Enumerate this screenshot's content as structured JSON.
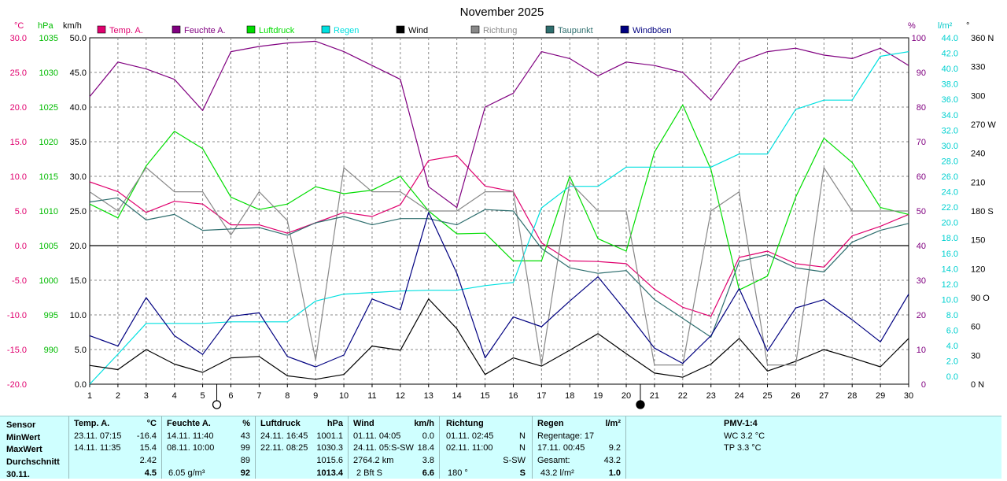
{
  "chart_data": {
    "type": "line",
    "title": "November 2025",
    "x": [
      1,
      2,
      3,
      4,
      5,
      6,
      7,
      8,
      9,
      10,
      11,
      12,
      13,
      14,
      15,
      16,
      17,
      18,
      19,
      20,
      21,
      22,
      23,
      24,
      25,
      26,
      27,
      28,
      29,
      30
    ],
    "xlim": [
      1,
      30
    ],
    "axes": {
      "temp_unit": "°C",
      "temp_ticks": [
        "30.0",
        "25.0",
        "20.0",
        "15.0",
        "10.0",
        "5.0",
        "0.0",
        "-5.0",
        "-10.0",
        "-15.0",
        "-20.0"
      ],
      "temp_range": [
        -20,
        30
      ],
      "press_unit": "hPa",
      "press_ticks": [
        "1035",
        "1030",
        "1025",
        "1020",
        "1015",
        "1010",
        "1005",
        "1000",
        "995",
        "990"
      ],
      "press_range": [
        990,
        1040
      ],
      "wind_unit": "km/h",
      "wind_ticks": [
        "50.0",
        "45.0",
        "40.0",
        "35.0",
        "30.0",
        "25.0",
        "20.0",
        "15.0",
        "10.0",
        "5.0",
        "0.0"
      ],
      "wind_range": [
        0,
        50
      ],
      "hum_unit": "%",
      "hum_ticks": [
        "100",
        "90",
        "80",
        "70",
        "60",
        "50",
        "40",
        "30",
        "20",
        "10",
        "0"
      ],
      "hum_range": [
        0,
        100
      ],
      "rain_unit": "l/m²",
      "rain_ticks": [
        "44.0",
        "42.0",
        "40.0",
        "38.0",
        "36.0",
        "34.0",
        "32.0",
        "30.0",
        "28.0",
        "26.0",
        "24.0",
        "22.0",
        "20.0",
        "18.0",
        "16.0",
        "14.0",
        "12.0",
        "10.0",
        "8.0",
        "6.0",
        "4.0",
        "2.0",
        "0.0"
      ],
      "rain_range": [
        0,
        45
      ],
      "dir_unit": "°",
      "dir_ticks": [
        "360 N",
        "330",
        "300",
        "270 W",
        "240",
        "210",
        "180 S",
        "150",
        "120",
        "90 O",
        "60",
        "30",
        "0 N"
      ],
      "dir_range": [
        0,
        360
      ]
    },
    "moon_phases": [
      {
        "day": 5.5,
        "phase": "full"
      },
      {
        "day": 20.5,
        "phase": "new"
      }
    ],
    "legend_position": "top",
    "series": [
      {
        "name": "Temp. A.",
        "color": "#e0006e",
        "axis": "temp",
        "values": [
          9.2,
          7.8,
          4.8,
          6.4,
          6.0,
          3.0,
          3.0,
          1.8,
          3.3,
          4.8,
          4.2,
          5.9,
          12.3,
          13.0,
          8.6,
          7.8,
          0.4,
          -2.2,
          -2.3,
          -2.6,
          -6.3,
          -8.9,
          -10.2,
          -1.7,
          -0.8,
          -2.6,
          -3.1,
          1.4,
          2.8,
          4.5
        ]
      },
      {
        "name": "Feuchte A.",
        "color": "#800080",
        "axis": "hum",
        "values": [
          83,
          93,
          91,
          88,
          79,
          96,
          97.5,
          98.5,
          99,
          96,
          92,
          88,
          57,
          51,
          80,
          84,
          96,
          94,
          89,
          93,
          92,
          90,
          82,
          93,
          96,
          97,
          95,
          94,
          97,
          92
        ]
      },
      {
        "name": "Luftdruck",
        "color": "#00dd00",
        "axis": "press",
        "values": [
          1016,
          1014,
          1021.5,
          1026.5,
          1024,
          1017,
          1015.2,
          1016,
          1018.5,
          1017.5,
          1018,
          1020,
          1015,
          1011.7,
          1011.8,
          1007.8,
          1007.8,
          1020,
          1011,
          1009.2,
          1023.5,
          1030.3,
          1021,
          1003.6,
          1005.6,
          1017,
          1025.5,
          1022,
          1015.5,
          1014.5
        ]
      },
      {
        "name": "Regen",
        "color": "#00e0e0",
        "axis": "rain",
        "values": [
          0,
          3.9,
          7.9,
          7.9,
          7.9,
          8.1,
          8.1,
          8.1,
          10.8,
          11.7,
          11.9,
          12.1,
          12.2,
          12.2,
          12.8,
          13.2,
          22.9,
          25.7,
          25.7,
          28.2,
          28.2,
          28.2,
          28.2,
          29.9,
          29.9,
          35.7,
          36.9,
          36.9,
          42.6,
          43.2
        ]
      },
      {
        "name": "Wind",
        "color": "#000000",
        "axis": "wind",
        "values": [
          2.7,
          2.1,
          5.0,
          2.9,
          1.7,
          3.8,
          4.0,
          1.2,
          0.7,
          1.4,
          5.5,
          4.9,
          12.3,
          8.0,
          1.4,
          3.8,
          2.6,
          4.9,
          7.3,
          4.4,
          1.6,
          1.0,
          2.9,
          6.6,
          1.9,
          3.3,
          5.0,
          3.8,
          2.5,
          6.6
        ]
      },
      {
        "name": "Richtung",
        "color": "#888888",
        "axis": "dir",
        "values": [
          200,
          180,
          225,
          200,
          200,
          155,
          200,
          170,
          25,
          225,
          200,
          200,
          180,
          180,
          200,
          200,
          20,
          210,
          180,
          180,
          20,
          20,
          180,
          200,
          20,
          20,
          225,
          180,
          180,
          180
        ]
      },
      {
        "name": "Taupunkt",
        "color": "#2e6e6e",
        "axis": "temp",
        "values": [
          6.3,
          6.9,
          3.7,
          4.5,
          2.2,
          2.4,
          2.6,
          1.5,
          3.3,
          4.2,
          3.0,
          3.9,
          3.9,
          3.0,
          5.2,
          5.0,
          -0.4,
          -3.2,
          -4.0,
          -3.6,
          -7.8,
          -10.5,
          -13.2,
          -2.3,
          -1.3,
          -3.2,
          -3.8,
          0.5,
          2.2,
          3.2
        ]
      },
      {
        "name": "Windböen",
        "color": "#000080",
        "axis": "wind",
        "values": [
          7.0,
          5.5,
          12.5,
          7.0,
          4.3,
          9.8,
          10.3,
          4.0,
          2.5,
          4.2,
          12.3,
          10.7,
          24.8,
          16.0,
          3.8,
          9.7,
          8.3,
          12.0,
          15.5,
          10.5,
          5.2,
          3.0,
          7.0,
          13.8,
          4.8,
          11.0,
          12.2,
          9.3,
          6.1,
          13.0
        ]
      }
    ]
  },
  "stats": {
    "col_sensor": {
      "header": "Sensor",
      "rows": [
        "MinWert",
        "MaxWert",
        "Durchschnitt",
        "30.11."
      ]
    },
    "col_temp": {
      "header": "Temp. A.",
      "unit": "°C",
      "rows": [
        [
          "23.11.  07:15",
          "-16.4"
        ],
        [
          "14.11.  11:35",
          "15.4"
        ],
        [
          "",
          "2.42"
        ],
        [
          "",
          "4.5"
        ]
      ]
    },
    "col_hum": {
      "header": "Feuchte A.",
      "unit": "%",
      "rows": [
        [
          "14.11.  11:40",
          "43"
        ],
        [
          "08.11.  10:00",
          "99"
        ],
        [
          "",
          "89"
        ],
        [
          "6.05 g/m³",
          "92"
        ]
      ]
    },
    "col_press": {
      "header": "Luftdruck",
      "unit": "hPa",
      "rows": [
        [
          "24.11.  16:45",
          "1001.1"
        ],
        [
          "22.11.  08:25",
          "1030.3"
        ],
        [
          "",
          "1015.6"
        ],
        [
          "",
          "1013.4"
        ]
      ]
    },
    "col_wind": {
      "header": "Wind",
      "unit": "km/h",
      "rows": [
        [
          "01.11.  04:05",
          "0.0"
        ],
        [
          "24.11.  05:S-SW",
          "18.4"
        ],
        [
          "2764.2 km",
          "3.8"
        ],
        [
          "2 Bft S",
          "6.6"
        ]
      ]
    },
    "col_dir": {
      "header": "Richtung",
      "rows": [
        [
          "01.11.  02:45",
          "N"
        ],
        [
          "02.11.  11:00",
          "N"
        ],
        [
          "",
          "S-SW"
        ],
        [
          "180 °",
          "S"
        ]
      ]
    },
    "col_rain": {
      "header": "Regen",
      "unit": "l/m²",
      "rows": [
        [
          "Regentage: 17",
          ""
        ],
        [
          "17.11.  00:45",
          "9.2"
        ],
        [
          "Gesamt:",
          "43.2"
        ],
        [
          "43.2 l/m²",
          "1.0"
        ]
      ]
    },
    "col_pmv": {
      "header": "PMV-1:4",
      "rows": [
        "WC 3.2 °C",
        "TP 3.3 °C"
      ]
    }
  }
}
